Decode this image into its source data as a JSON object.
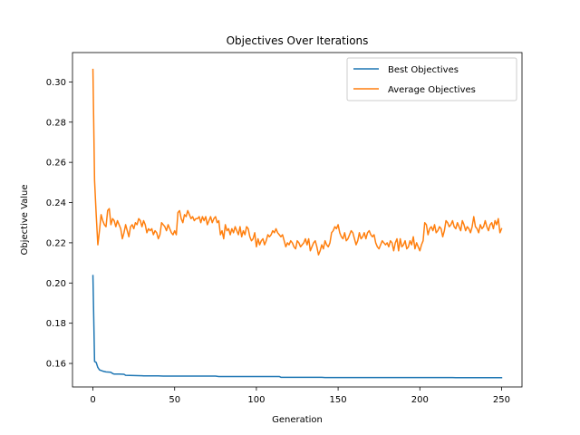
{
  "chart_data": {
    "type": "line",
    "title": "Objectives Over Iterations",
    "xlabel": "Generation",
    "ylabel": "Objective Value",
    "xlim": [
      -12.5,
      262.5
    ],
    "ylim": [
      0.1483,
      0.3146
    ],
    "xticks": [
      0,
      50,
      100,
      150,
      200,
      250
    ],
    "xtick_labels": [
      "0",
      "50",
      "100",
      "150",
      "200",
      "250"
    ],
    "yticks": [
      0.16,
      0.18,
      0.2,
      0.22,
      0.24,
      0.26,
      0.28,
      0.3
    ],
    "ytick_labels": [
      "0.16",
      "0.18",
      "0.20",
      "0.22",
      "0.24",
      "0.26",
      "0.28",
      "0.30"
    ],
    "grid": false,
    "legend_position": "top-right",
    "series": [
      {
        "name": "Best Objectives",
        "color": "#1f77b4",
        "points": [
          [
            0,
            0.2037
          ],
          [
            1,
            0.161
          ],
          [
            2,
            0.1605
          ],
          [
            3,
            0.158
          ],
          [
            4,
            0.1568
          ],
          [
            5,
            0.1565
          ],
          [
            6,
            0.1562
          ],
          [
            8,
            0.1558
          ],
          [
            10,
            0.1557
          ],
          [
            11,
            0.1556
          ],
          [
            12,
            0.155
          ],
          [
            13,
            0.1547
          ],
          [
            16,
            0.1547
          ],
          [
            19,
            0.1546
          ],
          [
            20,
            0.1541
          ],
          [
            25,
            0.154
          ],
          [
            30,
            0.1539
          ],
          [
            31,
            0.1538
          ],
          [
            40,
            0.1538
          ],
          [
            43,
            0.1537
          ],
          [
            60,
            0.1537
          ],
          [
            75,
            0.1537
          ],
          [
            77,
            0.1535
          ],
          [
            100,
            0.1535
          ],
          [
            114,
            0.1535
          ],
          [
            115,
            0.1531
          ],
          [
            140,
            0.1531
          ],
          [
            142,
            0.153
          ],
          [
            180,
            0.153
          ],
          [
            200,
            0.153
          ],
          [
            220,
            0.153
          ],
          [
            222,
            0.1529
          ],
          [
            250,
            0.1529
          ]
        ]
      },
      {
        "name": "Average Objectives",
        "color": "#ff7f0e",
        "points": [
          [
            0,
            0.3062
          ],
          [
            1,
            0.251
          ],
          [
            2,
            0.234
          ],
          [
            3,
            0.219
          ],
          [
            4,
            0.226
          ],
          [
            5,
            0.234
          ],
          [
            6,
            0.231
          ],
          [
            7,
            0.229
          ],
          [
            8,
            0.228
          ],
          [
            9,
            0.236
          ],
          [
            10,
            0.237
          ],
          [
            11,
            0.229
          ],
          [
            12,
            0.232
          ],
          [
            13,
            0.231
          ],
          [
            14,
            0.228
          ],
          [
            15,
            0.231
          ],
          [
            16,
            0.229
          ],
          [
            17,
            0.227
          ],
          [
            18,
            0.222
          ],
          [
            19,
            0.225
          ],
          [
            20,
            0.229
          ],
          [
            21,
            0.226
          ],
          [
            22,
            0.223
          ],
          [
            23,
            0.228
          ],
          [
            24,
            0.229
          ],
          [
            25,
            0.227
          ],
          [
            26,
            0.23
          ],
          [
            27,
            0.229
          ],
          [
            28,
            0.232
          ],
          [
            29,
            0.231
          ],
          [
            30,
            0.228
          ],
          [
            31,
            0.231
          ],
          [
            32,
            0.229
          ],
          [
            33,
            0.225
          ],
          [
            34,
            0.227
          ],
          [
            35,
            0.226
          ],
          [
            36,
            0.227
          ],
          [
            37,
            0.224
          ],
          [
            38,
            0.226
          ],
          [
            39,
            0.225
          ],
          [
            40,
            0.222
          ],
          [
            41,
            0.224
          ],
          [
            42,
            0.23
          ],
          [
            43,
            0.229
          ],
          [
            44,
            0.228
          ],
          [
            45,
            0.226
          ],
          [
            46,
            0.229
          ],
          [
            47,
            0.227
          ],
          [
            48,
            0.225
          ],
          [
            49,
            0.224
          ],
          [
            50,
            0.226
          ],
          [
            51,
            0.224
          ],
          [
            52,
            0.235
          ],
          [
            53,
            0.236
          ],
          [
            54,
            0.232
          ],
          [
            55,
            0.23
          ],
          [
            56,
            0.234
          ],
          [
            57,
            0.233
          ],
          [
            58,
            0.236
          ],
          [
            59,
            0.234
          ],
          [
            60,
            0.232
          ],
          [
            61,
            0.233
          ],
          [
            62,
            0.231
          ],
          [
            63,
            0.232
          ],
          [
            64,
            0.232
          ],
          [
            65,
            0.233
          ],
          [
            66,
            0.23
          ],
          [
            67,
            0.233
          ],
          [
            68,
            0.231
          ],
          [
            69,
            0.233
          ],
          [
            70,
            0.229
          ],
          [
            71,
            0.231
          ],
          [
            72,
            0.233
          ],
          [
            73,
            0.23
          ],
          [
            74,
            0.232
          ],
          [
            75,
            0.233
          ],
          [
            76,
            0.23
          ],
          [
            77,
            0.231
          ],
          [
            78,
            0.224
          ],
          [
            79,
            0.226
          ],
          [
            80,
            0.222
          ],
          [
            81,
            0.229
          ],
          [
            82,
            0.226
          ],
          [
            83,
            0.227
          ],
          [
            84,
            0.224
          ],
          [
            85,
            0.227
          ],
          [
            86,
            0.225
          ],
          [
            87,
            0.228
          ],
          [
            88,
            0.226
          ],
          [
            89,
            0.224
          ],
          [
            90,
            0.228
          ],
          [
            91,
            0.223
          ],
          [
            92,
            0.226
          ],
          [
            93,
            0.224
          ],
          [
            94,
            0.228
          ],
          [
            95,
            0.227
          ],
          [
            96,
            0.223
          ],
          [
            97,
            0.221
          ],
          [
            98,
            0.222
          ],
          [
            99,
            0.225
          ],
          [
            100,
            0.218
          ],
          [
            101,
            0.222
          ],
          [
            102,
            0.219
          ],
          [
            103,
            0.221
          ],
          [
            104,
            0.222
          ],
          [
            105,
            0.219
          ],
          [
            106,
            0.221
          ],
          [
            107,
            0.224
          ],
          [
            108,
            0.223
          ],
          [
            109,
            0.224
          ],
          [
            110,
            0.226
          ],
          [
            111,
            0.225
          ],
          [
            112,
            0.227
          ],
          [
            113,
            0.225
          ],
          [
            114,
            0.224
          ],
          [
            115,
            0.223
          ],
          [
            116,
            0.224
          ],
          [
            117,
            0.221
          ],
          [
            118,
            0.218
          ],
          [
            119,
            0.22
          ],
          [
            120,
            0.219
          ],
          [
            121,
            0.221
          ],
          [
            122,
            0.22
          ],
          [
            123,
            0.218
          ],
          [
            124,
            0.217
          ],
          [
            125,
            0.221
          ],
          [
            126,
            0.22
          ],
          [
            127,
            0.218
          ],
          [
            128,
            0.219
          ],
          [
            129,
            0.22
          ],
          [
            130,
            0.222
          ],
          [
            131,
            0.219
          ],
          [
            132,
            0.222
          ],
          [
            133,
            0.216
          ],
          [
            134,
            0.218
          ],
          [
            135,
            0.22
          ],
          [
            136,
            0.221
          ],
          [
            137,
            0.218
          ],
          [
            138,
            0.214
          ],
          [
            139,
            0.216
          ],
          [
            140,
            0.219
          ],
          [
            141,
            0.217
          ],
          [
            142,
            0.221
          ],
          [
            143,
            0.219
          ],
          [
            144,
            0.218
          ],
          [
            145,
            0.22
          ],
          [
            146,
            0.225
          ],
          [
            147,
            0.226
          ],
          [
            148,
            0.228
          ],
          [
            149,
            0.227
          ],
          [
            150,
            0.229
          ],
          [
            151,
            0.225
          ],
          [
            152,
            0.223
          ],
          [
            153,
            0.222
          ],
          [
            154,
            0.225
          ],
          [
            155,
            0.221
          ],
          [
            156,
            0.222
          ],
          [
            157,
            0.224
          ],
          [
            158,
            0.226
          ],
          [
            159,
            0.225
          ],
          [
            160,
            0.222
          ],
          [
            161,
            0.219
          ],
          [
            162,
            0.221
          ],
          [
            163,
            0.225
          ],
          [
            164,
            0.222
          ],
          [
            165,
            0.223
          ],
          [
            166,
            0.225
          ],
          [
            167,
            0.222
          ],
          [
            168,
            0.225
          ],
          [
            169,
            0.226
          ],
          [
            170,
            0.224
          ],
          [
            171,
            0.223
          ],
          [
            172,
            0.224
          ],
          [
            173,
            0.22
          ],
          [
            174,
            0.218
          ],
          [
            175,
            0.217
          ],
          [
            176,
            0.219
          ],
          [
            177,
            0.221
          ],
          [
            178,
            0.22
          ],
          [
            179,
            0.219
          ],
          [
            180,
            0.22
          ],
          [
            181,
            0.218
          ],
          [
            182,
            0.221
          ],
          [
            183,
            0.22
          ],
          [
            184,
            0.216
          ],
          [
            185,
            0.22
          ],
          [
            186,
            0.222
          ],
          [
            187,
            0.216
          ],
          [
            188,
            0.222
          ],
          [
            189,
            0.218
          ],
          [
            190,
            0.219
          ],
          [
            191,
            0.221
          ],
          [
            192,
            0.217
          ],
          [
            193,
            0.218
          ],
          [
            194,
            0.221
          ],
          [
            195,
            0.219
          ],
          [
            196,
            0.223
          ],
          [
            197,
            0.217
          ],
          [
            198,
            0.22
          ],
          [
            199,
            0.218
          ],
          [
            200,
            0.216
          ],
          [
            201,
            0.219
          ],
          [
            202,
            0.221
          ],
          [
            203,
            0.23
          ],
          [
            204,
            0.229
          ],
          [
            205,
            0.224
          ],
          [
            206,
            0.227
          ],
          [
            207,
            0.228
          ],
          [
            208,
            0.226
          ],
          [
            209,
            0.229
          ],
          [
            210,
            0.225
          ],
          [
            211,
            0.226
          ],
          [
            212,
            0.228
          ],
          [
            213,
            0.227
          ],
          [
            214,
            0.223
          ],
          [
            215,
            0.226
          ],
          [
            216,
            0.231
          ],
          [
            217,
            0.23
          ],
          [
            218,
            0.228
          ],
          [
            219,
            0.229
          ],
          [
            220,
            0.231
          ],
          [
            221,
            0.228
          ],
          [
            222,
            0.227
          ],
          [
            223,
            0.23
          ],
          [
            224,
            0.228
          ],
          [
            225,
            0.226
          ],
          [
            226,
            0.231
          ],
          [
            227,
            0.229
          ],
          [
            228,
            0.226
          ],
          [
            229,
            0.228
          ],
          [
            230,
            0.227
          ],
          [
            231,
            0.225
          ],
          [
            232,
            0.228
          ],
          [
            233,
            0.233
          ],
          [
            234,
            0.228
          ],
          [
            235,
            0.227
          ],
          [
            236,
            0.225
          ],
          [
            237,
            0.229
          ],
          [
            238,
            0.227
          ],
          [
            239,
            0.228
          ],
          [
            240,
            0.231
          ],
          [
            241,
            0.228
          ],
          [
            242,
            0.226
          ],
          [
            243,
            0.229
          ],
          [
            244,
            0.23
          ],
          [
            245,
            0.227
          ],
          [
            246,
            0.231
          ],
          [
            247,
            0.229
          ],
          [
            248,
            0.232
          ],
          [
            249,
            0.225
          ],
          [
            250,
            0.227
          ]
        ]
      }
    ]
  }
}
